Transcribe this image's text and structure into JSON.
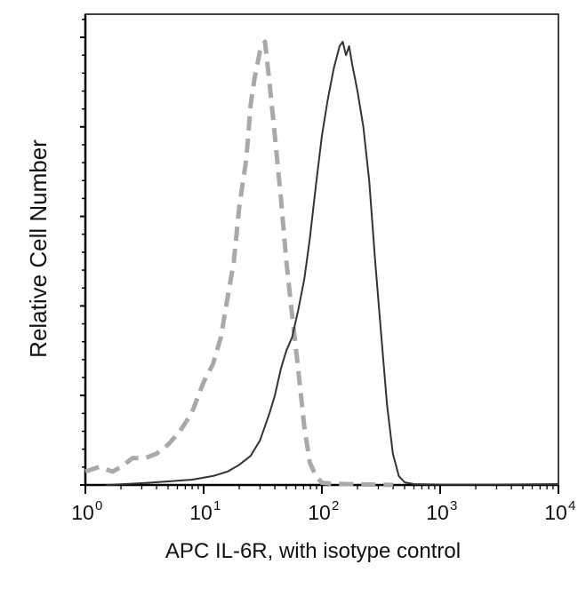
{
  "chart_data": {
    "type": "line",
    "title": "",
    "xlabel": "APC IL-6R, with isotype control",
    "ylabel": "Relative Cell Number",
    "x_scale": "log",
    "xlim": [
      1,
      10000
    ],
    "ylim": [
      0,
      100
    ],
    "x_tick_labels": [
      {
        "base": "10",
        "exp": "0",
        "value": 1
      },
      {
        "base": "10",
        "exp": "1",
        "value": 10
      },
      {
        "base": "10",
        "exp": "2",
        "value": 100
      },
      {
        "base": "10",
        "exp": "3",
        "value": 1000
      },
      {
        "base": "10",
        "exp": "4",
        "value": 10000
      }
    ],
    "y_major_ticks": [
      0,
      20,
      40,
      60,
      80,
      100
    ],
    "grid": false,
    "legend": "none",
    "series": [
      {
        "style": "dashed",
        "color": "#a9a9a9",
        "points": [
          [
            1.0,
            3
          ],
          [
            1.3,
            4
          ],
          [
            1.7,
            3
          ],
          [
            2.0,
            4
          ],
          [
            2.5,
            6
          ],
          [
            3.2,
            6
          ],
          [
            4.0,
            7
          ],
          [
            5.0,
            9
          ],
          [
            6.3,
            12
          ],
          [
            7.9,
            16
          ],
          [
            10,
            23
          ],
          [
            12,
            27
          ],
          [
            14,
            33
          ],
          [
            16,
            42
          ],
          [
            18,
            50
          ],
          [
            20,
            62
          ],
          [
            23,
            73
          ],
          [
            25,
            85
          ],
          [
            27,
            91
          ],
          [
            30,
            97
          ],
          [
            33,
            99
          ],
          [
            36,
            90
          ],
          [
            40,
            78
          ],
          [
            45,
            64
          ],
          [
            50,
            50
          ],
          [
            56,
            38
          ],
          [
            63,
            26
          ],
          [
            71,
            13
          ],
          [
            79,
            5
          ],
          [
            89,
            2
          ],
          [
            100,
            0.5
          ],
          [
            120,
            0.3
          ],
          [
            160,
            0.2
          ],
          [
            250,
            0.1
          ],
          [
            400,
            0
          ]
        ]
      },
      {
        "style": "solid",
        "color": "#333333",
        "points": [
          [
            1.5,
            0
          ],
          [
            3.0,
            0.4
          ],
          [
            5.0,
            0.8
          ],
          [
            8.0,
            1.2
          ],
          [
            12,
            2
          ],
          [
            16,
            3
          ],
          [
            20,
            4.5
          ],
          [
            25,
            6.5
          ],
          [
            30,
            10
          ],
          [
            36,
            16
          ],
          [
            40,
            20
          ],
          [
            45,
            26
          ],
          [
            50,
            30
          ],
          [
            56,
            33
          ],
          [
            63,
            39
          ],
          [
            71,
            46
          ],
          [
            79,
            55
          ],
          [
            89,
            67
          ],
          [
            100,
            78
          ],
          [
            112,
            86
          ],
          [
            126,
            93
          ],
          [
            141,
            98
          ],
          [
            150,
            99
          ],
          [
            160,
            96
          ],
          [
            170,
            98
          ],
          [
            180,
            94
          ],
          [
            200,
            88
          ],
          [
            224,
            80
          ],
          [
            251,
            68
          ],
          [
            282,
            50
          ],
          [
            316,
            34
          ],
          [
            355,
            18
          ],
          [
            398,
            7
          ],
          [
            447,
            2
          ],
          [
            501,
            0.6
          ],
          [
            600,
            0.2
          ],
          [
            1000,
            0.1
          ],
          [
            3000,
            0.1
          ],
          [
            10000,
            0.2
          ]
        ]
      }
    ]
  }
}
